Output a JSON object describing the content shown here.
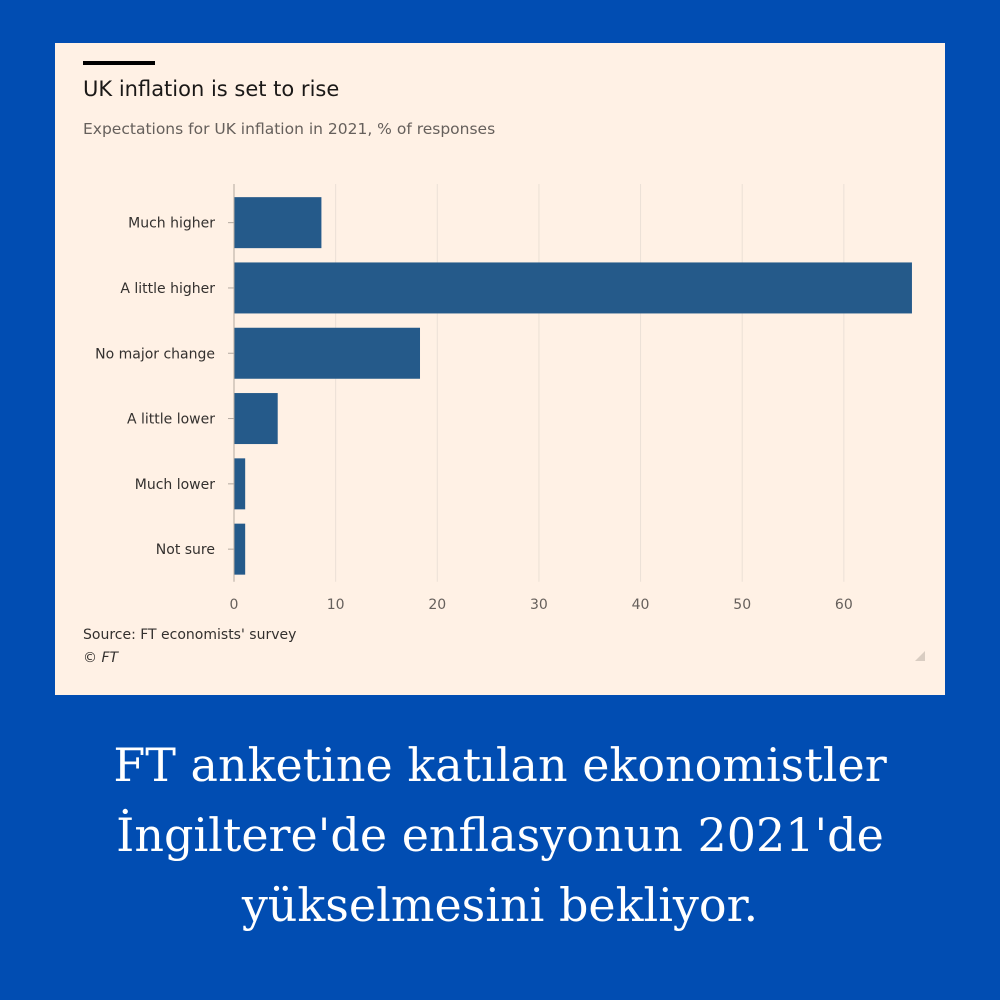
{
  "chart_data": {
    "type": "bar",
    "orientation": "horizontal",
    "title": "UK inflation is set to rise",
    "subtitle": "Expectations for UK inflation in 2021, % of responses",
    "categories": [
      "Much higher",
      "A little higher",
      "No major change",
      "A little lower",
      "Much lower",
      "Not sure"
    ],
    "values": [
      8.6,
      66.7,
      18.3,
      4.3,
      1.1,
      1.1
    ],
    "xlim": [
      0,
      67
    ],
    "xticks": [
      "0",
      "10",
      "20",
      "30",
      "40",
      "50",
      "60"
    ],
    "xtick_values": [
      0,
      10,
      20,
      30,
      40,
      50,
      60
    ],
    "grid": "vertical",
    "bar_color": "#255a8a",
    "grid_color": "#ebe0d6",
    "source": "Source: FT economists' survey",
    "copyright": "© FT"
  },
  "caption": "FT anketine katılan ekonomistler İngiltere'de enflasyonun 2021'de yükselmesini bekliyor.",
  "background_color": "#014db2",
  "card_color": "#fff1e5"
}
